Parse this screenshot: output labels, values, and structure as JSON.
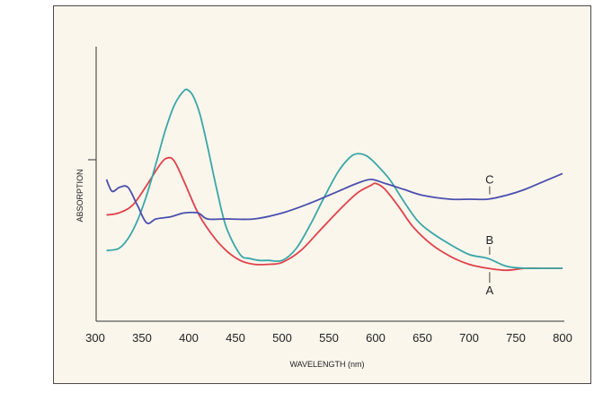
{
  "chart_data": {
    "type": "line",
    "title": "",
    "xlabel": "WAVELENGTH (nm)",
    "ylabel": "ABSORPTION",
    "xlim": [
      300,
      800
    ],
    "ylim": [
      0,
      1
    ],
    "x_ticks": [
      "300",
      "350",
      "400",
      "450",
      "500",
      "550",
      "600",
      "650",
      "700",
      "750",
      "800"
    ],
    "y_tick_mark": 0.6,
    "grid": false,
    "legend": "none",
    "series": [
      {
        "name": "A",
        "color": "#e0424a",
        "x": [
          312,
          325,
          340,
          355,
          370,
          378,
          385,
          395,
          410,
          425,
          440,
          455,
          470,
          485,
          500,
          520,
          540,
          560,
          580,
          595,
          600,
          610,
          625,
          640,
          660,
          680,
          700,
          720,
          740,
          760,
          780,
          800
        ],
        "y": [
          0.32,
          0.33,
          0.37,
          0.47,
          0.58,
          0.61,
          0.59,
          0.49,
          0.33,
          0.22,
          0.14,
          0.09,
          0.07,
          0.07,
          0.08,
          0.14,
          0.24,
          0.34,
          0.43,
          0.47,
          0.48,
          0.45,
          0.36,
          0.26,
          0.17,
          0.11,
          0.07,
          0.05,
          0.04,
          0.05,
          0.05,
          0.05
        ]
      },
      {
        "name": "B",
        "color": "#3aa6a8",
        "x": [
          312,
          325,
          335,
          345,
          355,
          365,
          375,
          385,
          395,
          400,
          405,
          412,
          420,
          430,
          440,
          455,
          465,
          475,
          485,
          500,
          515,
          530,
          545,
          560,
          572,
          580,
          590,
          600,
          615,
          630,
          645,
          660,
          680,
          700,
          720,
          740,
          760,
          780,
          800
        ],
        "y": [
          0.14,
          0.15,
          0.2,
          0.29,
          0.42,
          0.58,
          0.75,
          0.88,
          0.95,
          0.95,
          0.92,
          0.83,
          0.67,
          0.45,
          0.26,
          0.12,
          0.1,
          0.09,
          0.09,
          0.09,
          0.15,
          0.27,
          0.41,
          0.54,
          0.61,
          0.63,
          0.62,
          0.58,
          0.5,
          0.39,
          0.29,
          0.23,
          0.17,
          0.12,
          0.1,
          0.06,
          0.05,
          0.05,
          0.05
        ]
      },
      {
        "name": "C",
        "color": "#4a4fae",
        "x": [
          312,
          318,
          326,
          335,
          345,
          355,
          365,
          380,
          395,
          410,
          420,
          440,
          470,
          500,
          530,
          560,
          580,
          595,
          610,
          630,
          650,
          680,
          700,
          720,
          740,
          760,
          780,
          800
        ],
        "y": [
          0.5,
          0.44,
          0.46,
          0.46,
          0.37,
          0.28,
          0.3,
          0.31,
          0.33,
          0.33,
          0.3,
          0.3,
          0.3,
          0.33,
          0.38,
          0.44,
          0.48,
          0.5,
          0.48,
          0.45,
          0.42,
          0.4,
          0.4,
          0.4,
          0.42,
          0.45,
          0.49,
          0.53
        ]
      }
    ],
    "annotations": [
      {
        "text": "C",
        "series": "C",
        "x": 722
      },
      {
        "text": "B",
        "series": "B",
        "x": 722
      },
      {
        "text": "A",
        "series": "A",
        "x": 722
      }
    ]
  }
}
